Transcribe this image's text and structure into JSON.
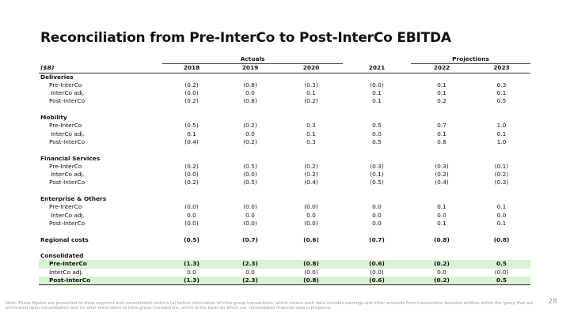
{
  "title": "Reconciliation from Pre-InterCo to Post-InterCo EBITDA",
  "table": {
    "groups": {
      "actuals": "Actuals",
      "projections": "Projections"
    },
    "unit_label": "($B)",
    "years": [
      "2018",
      "2019",
      "2020",
      "2021",
      "2022",
      "2023"
    ],
    "sections": [
      {
        "name": "Deliveries",
        "rows": [
          {
            "label": "Pre-InterCo",
            "values": [
              "(0.2)",
              "(0.8)",
              "(0.3)",
              "(0.0)",
              "0.1",
              "0.3"
            ]
          },
          {
            "label": "InterCo adj.",
            "values": [
              "(0.0)",
              "0.0",
              "0.1",
              "0.1",
              "0.1",
              "0.1"
            ]
          },
          {
            "label": "Post-InterCo",
            "values": [
              "(0.2)",
              "(0.8)",
              "(0.2)",
              "0.1",
              "0.2",
              "0.5"
            ]
          }
        ]
      },
      {
        "name": "Mobility",
        "rows": [
          {
            "label": "Pre-InterCo",
            "values": [
              "(0.5)",
              "(0.2)",
              "0.3",
              "0.5",
              "0.7",
              "1.0"
            ]
          },
          {
            "label": "InterCo adj.",
            "values": [
              "0.1",
              "0.0",
              "0.1",
              "0.0",
              "0.1",
              "0.1"
            ]
          },
          {
            "label": "Post-InterCo",
            "values": [
              "(0.4)",
              "(0.2)",
              "0.3",
              "0.5",
              "0.8",
              "1.0"
            ]
          }
        ]
      },
      {
        "name": "Financial Services",
        "rows": [
          {
            "label": "Pre-InterCo",
            "values": [
              "(0.2)",
              "(0.5)",
              "(0.2)",
              "(0.3)",
              "(0.3)",
              "(0.1)"
            ]
          },
          {
            "label": "InterCo adj.",
            "values": [
              "(0.0)",
              "(0.0)",
              "(0.2)",
              "(0.1)",
              "(0.2)",
              "(0.2)"
            ]
          },
          {
            "label": "Post-InterCo",
            "values": [
              "(0.2)",
              "(0.5)",
              "(0.4)",
              "(0.5)",
              "(0.4)",
              "(0.3)"
            ]
          }
        ]
      },
      {
        "name": "Enterprise & Others",
        "rows": [
          {
            "label": "Pre-InterCo",
            "values": [
              "(0.0)",
              "(0.0)",
              "(0.0)",
              "0.0",
              "0.1",
              "0.1"
            ]
          },
          {
            "label": "InterCo adj.",
            "values": [
              "0.0",
              "0.0",
              "0.0",
              "0.0",
              "0.0",
              "0.0"
            ]
          },
          {
            "label": "Post-InterCo",
            "values": [
              "(0.0)",
              "(0.0)",
              "(0.0)",
              "0.0",
              "0.1",
              "0.1"
            ]
          }
        ]
      }
    ],
    "regional_costs": {
      "label": "Regional costs",
      "values": [
        "(0.5)",
        "(0.7)",
        "(0.6)",
        "(0.7)",
        "(0.8)",
        "(0.8)"
      ]
    },
    "consolidated": {
      "name": "Consolidated",
      "rows": [
        {
          "label": "Pre-InterCo",
          "values": [
            "(1.3)",
            "(2.3)",
            "(0.8)",
            "(0.6)",
            "(0.2)",
            "0.5"
          ]
        },
        {
          "label": "InterCo adj.",
          "values": [
            "0.0",
            "0.0",
            "(0.0)",
            "(0.0)",
            "0.0",
            "(0.0)"
          ]
        },
        {
          "label": "Post-InterCo",
          "values": [
            "(1.3)",
            "(2.3)",
            "(0.8)",
            "(0.6)",
            "(0.2)",
            "0.5"
          ]
        }
      ]
    }
  },
  "footnote": "Note: These figures are presented to show segment and consolidated metrics (a) before elimination of intra-group transactions, which means such data includes earnings and other amounts from transactions between entities within the group that are eliminated upon consolidation and (b) after elimination of intra-group transactions, which is the basis on which our consolidated financial data is prepared.",
  "page_number": "28",
  "colors": {
    "highlight_row": "#d9f1d4",
    "footnote_text": "#9a9a9a"
  }
}
